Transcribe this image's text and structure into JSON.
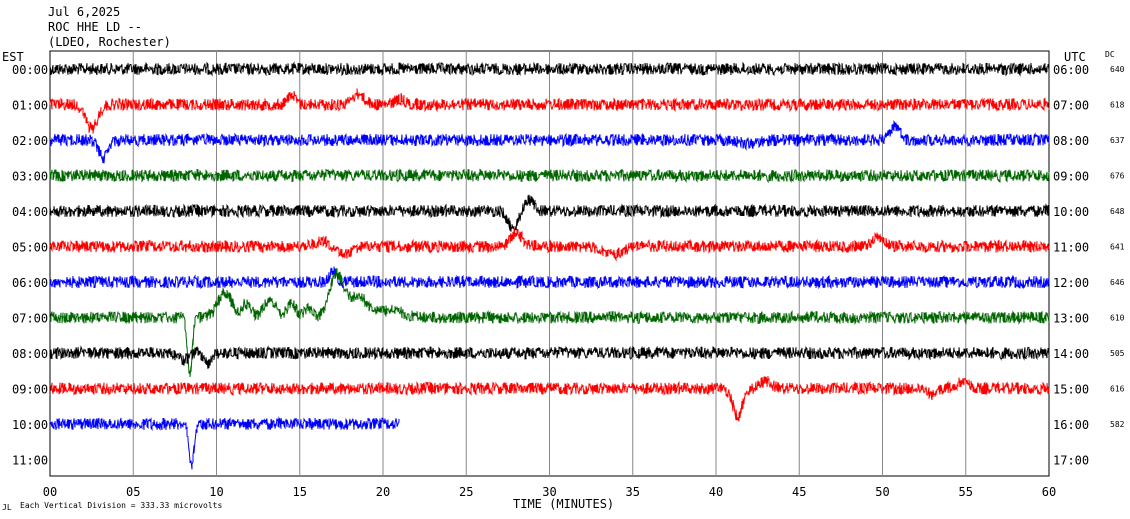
{
  "header": {
    "date": "Jul 6,2025",
    "station": "ROC HHE LD --",
    "location": "(LDEO, Rochester)"
  },
  "chart_data": {
    "type": "line",
    "title": "",
    "left_axis_title": "EST",
    "right_axis_title": "UTC",
    "dc_title": "DC",
    "xlabel": "TIME (MINUTES)",
    "xlim": [
      0,
      60
    ],
    "x_ticks": [
      "00",
      "05",
      "10",
      "15",
      "20",
      "25",
      "30",
      "35",
      "40",
      "45",
      "50",
      "55",
      "60"
    ],
    "grid": true,
    "scale_note": "Each Vertical Division =  333.33 microvolts",
    "scale_prefix": "JL",
    "colors": [
      "#000000",
      "#ff0000",
      "#0000ff",
      "#006600"
    ],
    "rows": [
      {
        "est": "00:00",
        "utc": "06:00",
        "dc": "640",
        "color": "#000000",
        "end_min": 60,
        "events": []
      },
      {
        "est": "01:00",
        "utc": "07:00",
        "dc": "618",
        "color": "#ff0000",
        "end_min": 60,
        "events": [
          [
            2.5,
            -3.5,
            0.5
          ],
          [
            14.5,
            1.5,
            0.3
          ],
          [
            18.5,
            1.5,
            0.5
          ],
          [
            21,
            0.8,
            0.4
          ]
        ]
      },
      {
        "est": "02:00",
        "utc": "08:00",
        "dc": "637",
        "color": "#0000ff",
        "end_min": 60,
        "events": [
          [
            3.2,
            -2.5,
            0.4
          ],
          [
            42,
            -0.5,
            0.8
          ],
          [
            50.8,
            2.0,
            0.4
          ]
        ]
      },
      {
        "est": "03:00",
        "utc": "09:00",
        "dc": "676",
        "color": "#006600",
        "end_min": 60,
        "events": []
      },
      {
        "est": "04:00",
        "utc": "10:00",
        "dc": "648",
        "color": "#000000",
        "end_min": 60,
        "events": [
          [
            27.8,
            -2.5,
            0.4
          ],
          [
            28.8,
            1.5,
            0.4
          ]
        ]
      },
      {
        "est": "05:00",
        "utc": "11:00",
        "dc": "641",
        "color": "#ff0000",
        "end_min": 60,
        "events": [
          [
            16.5,
            1.0,
            0.7
          ],
          [
            17.5,
            -1.2,
            0.8
          ],
          [
            28,
            2.0,
            0.5
          ],
          [
            33.8,
            -1.2,
            0.8
          ],
          [
            49.7,
            1.2,
            0.5
          ]
        ]
      },
      {
        "est": "06:00",
        "utc": "12:00",
        "dc": "646",
        "color": "#0000ff",
        "end_min": 60,
        "events": [
          [
            17,
            1.5,
            0.3
          ]
        ]
      },
      {
        "est": "07:00",
        "utc": "13:00",
        "dc": "610",
        "color": "#006600",
        "end_min": 60,
        "events": [
          [
            8.4,
            -8,
            0.2
          ],
          [
            10.5,
            3.5,
            0.6
          ],
          [
            11.8,
            2.0,
            0.4
          ],
          [
            13.2,
            2.5,
            0.5
          ],
          [
            14.5,
            2.0,
            0.4
          ],
          [
            15.5,
            1.5,
            0.3
          ],
          [
            17.2,
            6.0,
            0.6
          ],
          [
            18.5,
            3.0,
            0.8
          ],
          [
            20.5,
            1.0,
            1.0
          ]
        ]
      },
      {
        "est": "08:00",
        "utc": "14:00",
        "dc": "505",
        "color": "#000000",
        "end_min": 60,
        "events": [
          [
            8,
            -1.0,
            0.4
          ],
          [
            9.5,
            -1.5,
            0.3
          ]
        ]
      },
      {
        "est": "09:00",
        "utc": "15:00",
        "dc": "616",
        "color": "#ff0000",
        "end_min": 60,
        "events": [
          [
            41.3,
            -4.0,
            0.4
          ],
          [
            43,
            1.0,
            0.5
          ],
          [
            53,
            -1.0,
            0.3
          ],
          [
            54.8,
            1.0,
            0.5
          ]
        ]
      },
      {
        "est": "10:00",
        "utc": "16:00",
        "dc": "582",
        "color": "#0000ff",
        "end_min": 21,
        "events": [
          [
            8.5,
            -6.0,
            0.2
          ]
        ]
      },
      {
        "est": "11:00",
        "utc": "17:00",
        "dc": "",
        "color": "#006600",
        "end_min": 0,
        "events": []
      }
    ]
  }
}
